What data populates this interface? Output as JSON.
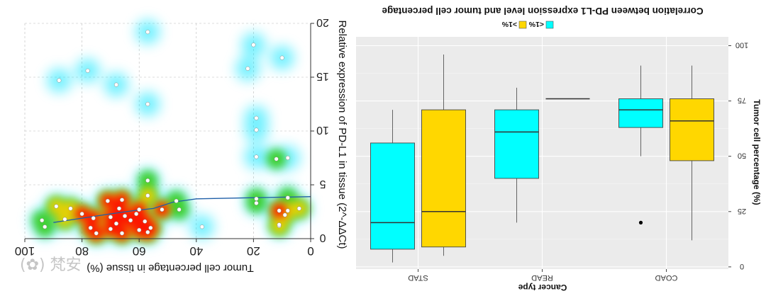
{
  "watermark": "(✿) 梵安",
  "chart_data": [
    {
      "type": "scatter",
      "render": "density-heatmap-with-points",
      "mirrored": true,
      "xlabel": "Tumor cell percentage in tissue (%)",
      "ylabel": "Relative expression of PD-L1 in tissue (2^-ΔΔCt)",
      "x_ticks": [
        0,
        20,
        40,
        60,
        80,
        100
      ],
      "y_ticks": [
        0,
        5,
        10,
        15,
        20
      ],
      "x_tick_labels": [
        "0",
        "20",
        "40",
        "60",
        "80",
        "100"
      ],
      "y_tick_labels": [
        "0",
        "5",
        "10",
        "15",
        "20"
      ],
      "xlim": [
        0,
        100
      ],
      "ylim": [
        0,
        20
      ],
      "grid": true,
      "colors": {
        "density_low": "#00e5ff",
        "density_mid": "#32c800",
        "density_high": "#ff0000",
        "trend": "#1f5fa8"
      },
      "points": [
        {
          "x": 57,
          "y": 19.2
        },
        {
          "x": 20,
          "y": 18.0
        },
        {
          "x": 10,
          "y": 16.8
        },
        {
          "x": 22,
          "y": 15.8
        },
        {
          "x": 78,
          "y": 15.6
        },
        {
          "x": 88,
          "y": 14.7
        },
        {
          "x": 68,
          "y": 14.3
        },
        {
          "x": 57,
          "y": 12.5
        },
        {
          "x": 19,
          "y": 11.2
        },
        {
          "x": 19,
          "y": 10.1
        },
        {
          "x": 19,
          "y": 7.6
        },
        {
          "x": 12,
          "y": 7.4
        },
        {
          "x": 8,
          "y": 7.5
        },
        {
          "x": 57,
          "y": 5.4
        },
        {
          "x": 57,
          "y": 4.0
        },
        {
          "x": 19,
          "y": 3.7
        },
        {
          "x": 8,
          "y": 3.8
        },
        {
          "x": 47,
          "y": 3.5
        },
        {
          "x": 4,
          "y": 2.8
        },
        {
          "x": 66,
          "y": 3.6
        },
        {
          "x": 71,
          "y": 3.5
        },
        {
          "x": 84,
          "y": 2.8
        },
        {
          "x": 89,
          "y": 3.0
        },
        {
          "x": 46,
          "y": 2.7
        },
        {
          "x": 52,
          "y": 2.7
        },
        {
          "x": 60,
          "y": 2.7
        },
        {
          "x": 19,
          "y": 3.3
        },
        {
          "x": 67,
          "y": 2.8
        },
        {
          "x": 80,
          "y": 2.3
        },
        {
          "x": 65,
          "y": 2.1
        },
        {
          "x": 61,
          "y": 2.3
        },
        {
          "x": 8,
          "y": 2.6
        },
        {
          "x": 11,
          "y": 2.6
        },
        {
          "x": 9,
          "y": 2.2
        },
        {
          "x": 70,
          "y": 2.0
        },
        {
          "x": 76,
          "y": 1.9
        },
        {
          "x": 86,
          "y": 1.8
        },
        {
          "x": 94,
          "y": 1.7
        },
        {
          "x": 63,
          "y": 1.7
        },
        {
          "x": 68,
          "y": 1.4
        },
        {
          "x": 58,
          "y": 1.6
        },
        {
          "x": 93,
          "y": 1.1
        },
        {
          "x": 77,
          "y": 1.0
        },
        {
          "x": 70,
          "y": 0.9
        },
        {
          "x": 60,
          "y": 0.8
        },
        {
          "x": 56,
          "y": 1.0
        },
        {
          "x": 66,
          "y": 0.5
        },
        {
          "x": 75,
          "y": 0.5
        },
        {
          "x": 11,
          "y": 1.2
        },
        {
          "x": 11,
          "y": 1.3
        },
        {
          "x": 38,
          "y": 1.1
        },
        {
          "x": 57,
          "y": 0.6
        }
      ],
      "trend_line": [
        {
          "x": 90,
          "y": 1.5
        },
        {
          "x": 80,
          "y": 1.9
        },
        {
          "x": 70,
          "y": 2.3
        },
        {
          "x": 62,
          "y": 2.6
        },
        {
          "x": 55,
          "y": 2.8
        },
        {
          "x": 48,
          "y": 3.4
        },
        {
          "x": 40,
          "y": 3.7
        },
        {
          "x": 20,
          "y": 3.8
        },
        {
          "x": 0,
          "y": 3.9
        }
      ]
    },
    {
      "type": "box",
      "mirrored": true,
      "title": "Correlation between PD-L1 expression level and tumor cell percentage",
      "xlabel": "Cancer type",
      "ylabel": "Tumor cell percentage (%)",
      "ylim": [
        0,
        100
      ],
      "y_ticks": [
        0,
        25,
        50,
        75,
        100
      ],
      "y_tick_labels": [
        "0",
        "25",
        "50",
        "75",
        "100"
      ],
      "grid": true,
      "legend_position": "top",
      "legend": [
        {
          "label": "<1%",
          "color": "#00ffff"
        },
        {
          "label": ">1%",
          "color": "#ffd700"
        }
      ],
      "categories": [
        "COAD",
        "READ",
        "STAD"
      ],
      "groups": [
        {
          "category": "COAD",
          "series": "<1%",
          "min": 50,
          "q1": 63,
          "median": 71,
          "q3": 76,
          "max": 91,
          "outliers": [
            20
          ]
        },
        {
          "category": "COAD",
          "series": ">1%",
          "min": 12,
          "q1": 48,
          "median": 66,
          "q3": 76,
          "max": 91,
          "outliers": []
        },
        {
          "category": "READ",
          "series": "<1%",
          "min": 20,
          "q1": 40,
          "median": 61,
          "q3": 71,
          "max": 81,
          "outliers": []
        },
        {
          "category": "READ",
          "series": ">1%",
          "min": 76,
          "q1": 76,
          "median": 76,
          "q3": 76,
          "max": 76,
          "outliers": []
        },
        {
          "category": "STAD",
          "series": "<1%",
          "min": 2,
          "q1": 8,
          "median": 20,
          "q3": 56,
          "max": 71,
          "outliers": []
        },
        {
          "category": "STAD",
          "series": ">1%",
          "min": 5,
          "q1": 9,
          "median": 25,
          "q3": 71,
          "max": 96,
          "outliers": []
        }
      ]
    }
  ]
}
